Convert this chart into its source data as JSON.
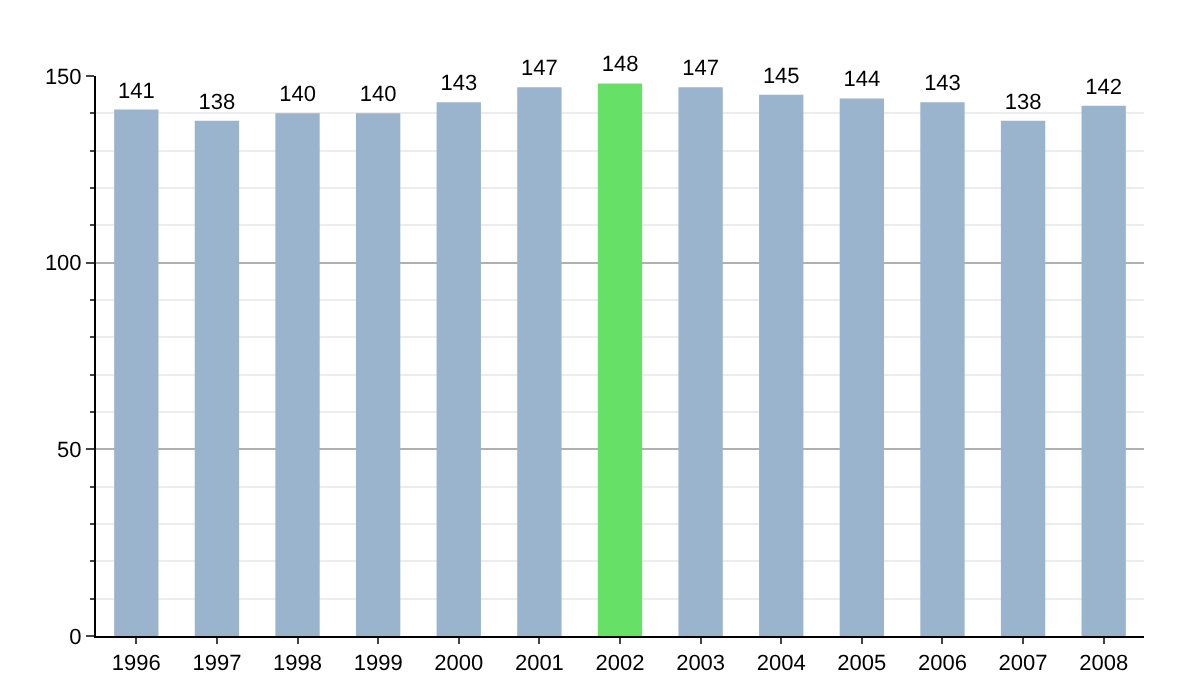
{
  "chart_data": {
    "type": "bar",
    "categories": [
      "1996",
      "1997",
      "1998",
      "1999",
      "2000",
      "2001",
      "2002",
      "2003",
      "2004",
      "2005",
      "2006",
      "2007",
      "2008"
    ],
    "values": [
      141,
      138,
      140,
      140,
      143,
      147,
      148,
      147,
      145,
      144,
      143,
      138,
      142
    ],
    "colors": [
      "#9bb4cd",
      "#9bb4cd",
      "#9bb4cd",
      "#9bb4cd",
      "#9bb4cd",
      "#9bb4cd",
      "#66e066",
      "#9bb4cd",
      "#9bb4cd",
      "#9bb4cd",
      "#9bb4cd",
      "#9bb4cd",
      "#9bb4cd"
    ],
    "ylim": [
      0,
      150
    ],
    "yticks": [
      0,
      50,
      100,
      150
    ],
    "grid": "y",
    "data_labels": true
  }
}
